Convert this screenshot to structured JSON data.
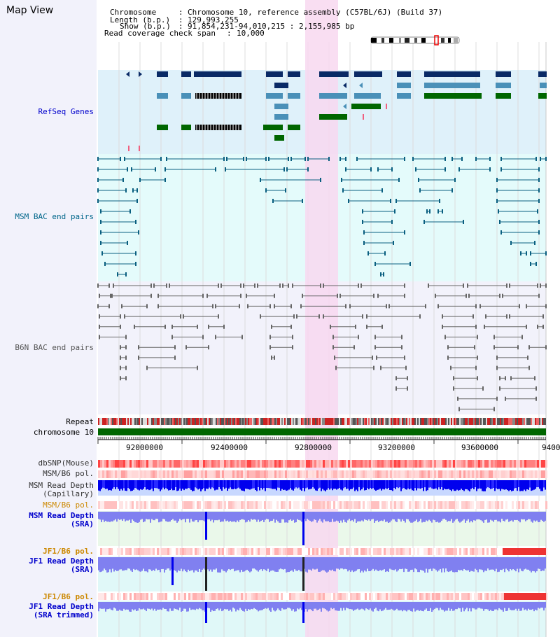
{
  "app": {
    "title": "Map View"
  },
  "header": {
    "chromosome_key": "Chromosome",
    "chromosome_value": "Chromosome 10, reference assembly (C57BL/6J) (Build 37)",
    "length_key": "Length (b.p.)",
    "length_value": "129,993,255",
    "show_key": "Show (b.p.)",
    "show_value": "91,854,231-94,010,215 : 2,155,985 bp",
    "coverage_key": "Read coverage check span",
    "coverage_value": "10,000",
    "separator": ":"
  },
  "tracks": {
    "refseq": "RefSeq Genes",
    "msm_bac": "MSM BAC end pairs",
    "b6n_bac": "B6N BAC end pairs",
    "repeat": "Repeat",
    "chromosome": "chromosome 10",
    "dbsnp": "dbSNP(Mouse)",
    "msm_b6_pol_1": "MSM/B6 pol.",
    "msm_read_depth_cap_1": "MSM Read Depth",
    "msm_read_depth_cap_2": "(Capillary)",
    "msm_b6_pol_2": "MSM/B6 pol.",
    "msm_read_depth_sra_1": "MSM Read Depth",
    "msm_read_depth_sra_2": "(SRA)",
    "jf1_b6_pol_1": "JF1/B6 pol.",
    "jf1_read_depth_sra_1": "JF1 Read Depth",
    "jf1_read_depth_sra_2": "(SRA)",
    "jf1_b6_pol_2": "JF1/B6 pol.",
    "jf1_read_depth_trim_1": "JF1 Read Depth",
    "jf1_read_depth_trim_2": "(SRA trimmed)"
  },
  "ruler": {
    "ticks": [
      "92000000",
      "92400000",
      "92800000",
      "93200000",
      "93600000",
      "9400"
    ]
  },
  "colors": {
    "refseq_bg": "#dff1fa",
    "msm_bg": "#e4fbfb",
    "b6n_bg": "#f2f2fb",
    "highlight": "#f8d8f0",
    "gene_dark": "#0a2a66",
    "gene_mid": "#4a90b8",
    "gene_green": "#006600",
    "msm_pair": "#0a5f80",
    "b6n_pair": "#666666",
    "chrom_bar": "#006600",
    "depth_blue": "#0000ee",
    "depth_light": "#8080f0",
    "label_blue": "#0000cc",
    "label_orange": "#cc8800",
    "label_msm": "#00668a"
  }
}
